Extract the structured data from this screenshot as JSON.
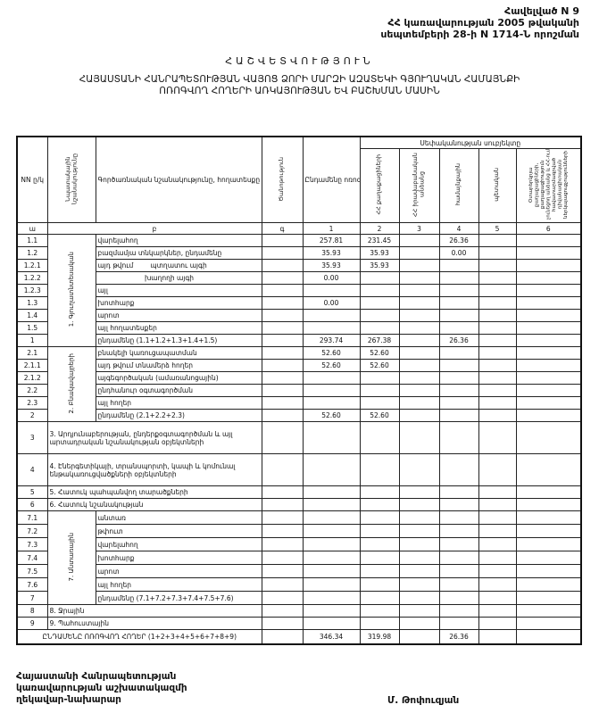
{
  "header": {
    "line1": "Հավելված N 9",
    "line2": "ՀՀ կառավարության 2005 թվականի",
    "line3": "սեպտեմբերի 28-ի N 1714-Ն որոշման"
  },
  "title": "ՀԱՇՎԵՏՎՈՒԹՅՈՒՆ",
  "subtitle": {
    "line1": "ՀԱՅԱՍՏԱՆԻ ՀԱՆՐԱՊԵՏՈՒԹՅԱՆ ՎԱՅՈՑ ՁՈՐԻ ՄԱՐԶԻ ԱԶԱՏԵԿԻ ԳՅՈՒՂԱԿԱՆ ՀԱՄԱՅՆՔԻ",
    "line2": "ՈՌՈԳՎՈՂ ՀՈՂԵՐԻ ԱՌԿԱՅՈՒԹՅԱՆ ԵՎ ԲԱՇԽՄԱՆ ՄԱՍԻՆ"
  },
  "table": {
    "columns": {
      "num": "NN ը/կ",
      "purpose": "Նպատակային նշանակությունը",
      "function": "Գործառնական նշանակությունը, հողատեսքը",
      "note": "Ծանոթություն",
      "total": "Ընդամենը ոռոգվող հողեր (2+3+4+5+6)",
      "ownership_group": "Սեփականության սուբյեկտը",
      "c2": "ՀՀ քաղաքացիների",
      "c3": "ՀՀ իրավաբանական անձանց",
      "c4": "համայնքային",
      "c5": "պետական",
      "c6": "Օտարերկրյա քաղաքացիների, քաղաքացիություն չունեցող անձանց և ՀՀ-ում հավատարմագրված դիվանագիտական ներկայացուցչությունների"
    },
    "index_row": [
      "ա",
      "բ",
      "գ",
      "1",
      "2",
      "3",
      "4",
      "5",
      "6"
    ],
    "groups": {
      "g1": "1. Գյուղատնտեսական",
      "g2": "2. Բնակավայրերի",
      "g7": "7. Անտառային"
    },
    "rows": [
      {
        "num": "1.1",
        "label": "վարելահող",
        "values": [
          "",
          "257.81",
          "231.45",
          "",
          "26.36",
          "",
          ""
        ]
      },
      {
        "num": "1.2",
        "label": "բազմամյա տնկարկներ, ընդամենը",
        "values": [
          "",
          "35.93",
          "35.93",
          "",
          "0.00",
          "",
          ""
        ]
      },
      {
        "num": "1.2.1",
        "label": "այդ թվում        պտղատու այգի",
        "values": [
          "",
          "35.93",
          "35.93",
          "",
          "",
          "",
          ""
        ]
      },
      {
        "num": "1.2.2",
        "label": "                      խաղողի այգի",
        "values": [
          "",
          "0.00",
          "",
          "",
          "",
          "",
          ""
        ]
      },
      {
        "num": "1.2.3",
        "label": "այլ",
        "values": [
          "",
          "",
          "",
          "",
          "",
          "",
          ""
        ]
      },
      {
        "num": "1.3",
        "label": "խոտհարք",
        "values": [
          "",
          "0.00",
          "",
          "",
          "",
          "",
          ""
        ]
      },
      {
        "num": "1.4",
        "label": "արոտ",
        "values": [
          "",
          "",
          "",
          "",
          "",
          "",
          ""
        ]
      },
      {
        "num": "1.5",
        "label": "այլ հողատեսքեր",
        "values": [
          "",
          "",
          "",
          "",
          "",
          "",
          ""
        ]
      },
      {
        "num": "1",
        "label": "ընդամենը (1.1+1.2+1.3+1.4+1.5)",
        "values": [
          "",
          "293.74",
          "267.38",
          "",
          "26.36",
          "",
          ""
        ]
      },
      {
        "num": "2.1",
        "label": "բնակելի կառուցապատման",
        "values": [
          "",
          "52.60",
          "52.60",
          "",
          "",
          "",
          ""
        ]
      },
      {
        "num": "2.1.1",
        "label": "այդ թվում տնամերձ հողեր",
        "values": [
          "",
          "52.60",
          "52.60",
          "",
          "",
          "",
          ""
        ]
      },
      {
        "num": "2.1.2",
        "label": "այգեգործական (ամառանոցային)",
        "values": [
          "",
          "",
          "",
          "",
          "",
          "",
          ""
        ]
      },
      {
        "num": "2.2",
        "label": "ընդհանուր օգտագործման",
        "values": [
          "",
          "",
          "",
          "",
          "",
          "",
          ""
        ]
      },
      {
        "num": "2.3",
        "label": "այլ հողեր",
        "values": [
          "",
          "",
          "",
          "",
          "",
          "",
          ""
        ]
      },
      {
        "num": "2",
        "label": "ընդամենը (2.1+2.2+2.3)",
        "values": [
          "",
          "52.60",
          "52.60",
          "",
          "",
          "",
          ""
        ]
      },
      {
        "num": "3",
        "label": "3. Արդյունաբերության, ընդերքօգտագործման և այլ արտադրական նշանակության օբյեկտների",
        "values": [
          "",
          "",
          "",
          "",
          "",
          "",
          ""
        ]
      },
      {
        "num": "4",
        "label": "4. Էներգետիկայի, տրանսպորտի, կապի և կոմունալ ենթակառուցվածքների օբյեկտների",
        "values": [
          "",
          "",
          "",
          "",
          "",
          "",
          ""
        ]
      },
      {
        "num": "5",
        "label": "5. Հատուկ պահպանվող տարածքների",
        "values": [
          "",
          "",
          "",
          "",
          "",
          "",
          ""
        ]
      },
      {
        "num": "6",
        "label": "6. Հատուկ նշանակության",
        "values": [
          "",
          "",
          "",
          "",
          "",
          "",
          ""
        ]
      },
      {
        "num": "7.1",
        "label": "անտառ",
        "values": [
          "",
          "",
          "",
          "",
          "",
          "",
          ""
        ]
      },
      {
        "num": "7.2",
        "label": "թփուտ",
        "values": [
          "",
          "",
          "",
          "",
          "",
          "",
          ""
        ]
      },
      {
        "num": "7.3",
        "label": "վարելահող",
        "values": [
          "",
          "",
          "",
          "",
          "",
          "",
          ""
        ]
      },
      {
        "num": "7.4",
        "label": "խոտհարք",
        "values": [
          "",
          "",
          "",
          "",
          "",
          "",
          ""
        ]
      },
      {
        "num": "7.5",
        "label": "արոտ",
        "values": [
          "",
          "",
          "",
          "",
          "",
          "",
          ""
        ]
      },
      {
        "num": "7.6",
        "label": "այլ հողեր",
        "values": [
          "",
          "",
          "",
          "",
          "",
          "",
          ""
        ]
      },
      {
        "num": "7",
        "label": "ընդամենը (7.1+7.2+7.3+7.4+7.5+7.6)",
        "values": [
          "",
          "",
          "",
          "",
          "",
          "",
          ""
        ]
      },
      {
        "num": "8",
        "label": "8. Ջրային",
        "values": [
          "",
          "",
          "",
          "",
          "",
          "",
          ""
        ]
      },
      {
        "num": "9",
        "label": "9. Պահուստային",
        "values": [
          "",
          "",
          "",
          "",
          "",
          "",
          ""
        ]
      }
    ],
    "grand_total": {
      "label": "ԸՆԴԱՄԵՆԸ ՈՌՈԳՎՈՂ ՀՈՂԵՐ (1+2+3+4+5+6+7+8+9)",
      "values": [
        "",
        "346.34",
        "319.98",
        "",
        "26.36",
        "",
        ""
      ]
    }
  },
  "footer": {
    "line1": "Հայաստանի Հանրապետության",
    "line2": "կառավարության աշխատակազմի",
    "line3": "ղեկավար-նախարար",
    "signature": "Մ. Թոփուզյան"
  }
}
